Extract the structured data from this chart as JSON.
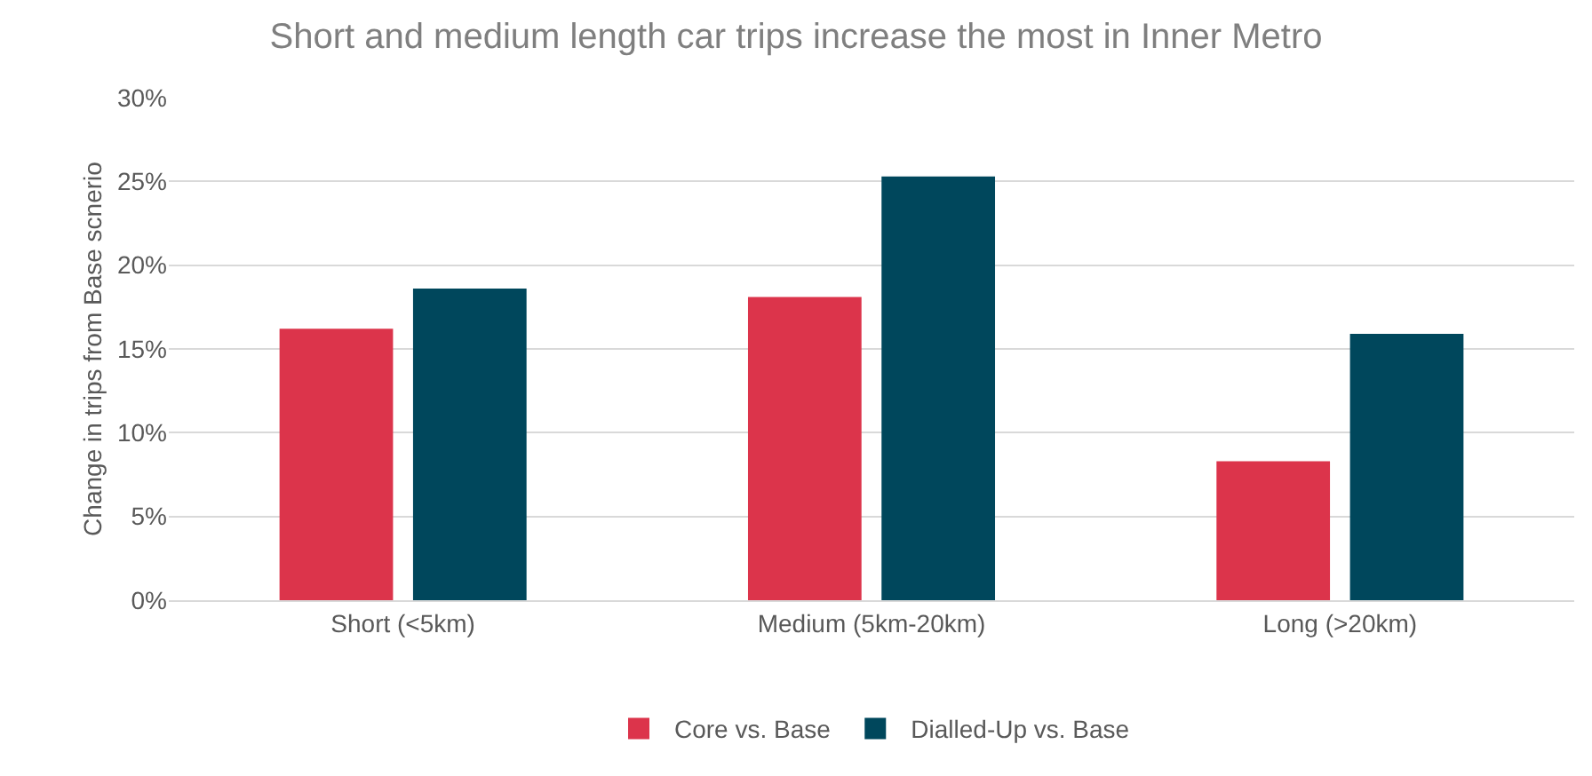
{
  "chart_data": {
    "type": "bar",
    "title": "Short and medium length car trips increase the most in Inner Metro",
    "ylabel": "Change in trips from Base scnerio",
    "categories": [
      "Short (<5km)",
      "Medium (5km-20km)",
      "Long (>20km)"
    ],
    "series": [
      {
        "name": "Core vs. Base",
        "color": "#dc344b",
        "values": [
          16.2,
          18.1,
          8.3
        ]
      },
      {
        "name": "Dialled-Up vs. Base",
        "color": "#00475c",
        "values": [
          18.6,
          25.3,
          15.9
        ]
      }
    ],
    "ylim": [
      0,
      30
    ],
    "yticks": [
      {
        "value": 0,
        "label": "0%"
      },
      {
        "value": 5,
        "label": "5%"
      },
      {
        "value": 10,
        "label": "10%"
      },
      {
        "value": 15,
        "label": "15%"
      },
      {
        "value": 20,
        "label": "20%"
      },
      {
        "value": 25,
        "label": "25%"
      },
      {
        "value": 30,
        "label": "30%"
      }
    ],
    "grid": "y",
    "legend": "bottom"
  }
}
